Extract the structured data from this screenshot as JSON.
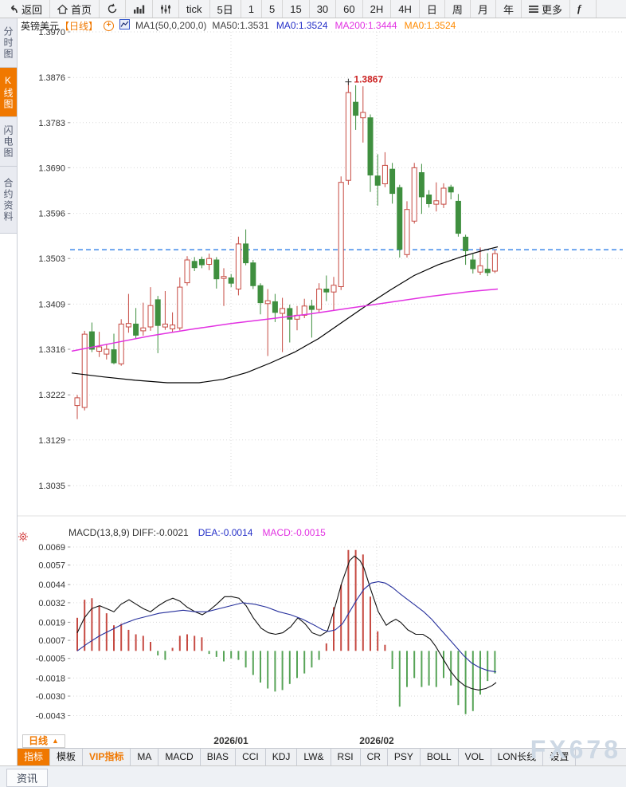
{
  "toolbar": {
    "back_label": "返回",
    "home_label": "首页",
    "periods": [
      "tick",
      "5日",
      "1",
      "5",
      "15",
      "30",
      "60",
      "2H",
      "4H",
      "日",
      "周",
      "月",
      "年"
    ],
    "more_label": "更多",
    "partial_item": "f"
  },
  "sidebar": {
    "tabs": [
      {
        "label": "分时图",
        "active": false
      },
      {
        "label": "K线图",
        "active": true
      },
      {
        "label": "闪电图",
        "active": false
      },
      {
        "label": "合约资料",
        "active": false
      }
    ]
  },
  "chart_header": {
    "symbol": "英镑美元",
    "period_tag": "【日线】",
    "ma_settings": "MA1(50,0,200,0)",
    "ma_values": [
      {
        "text": "MA50:1.3531",
        "color": "#444444"
      },
      {
        "text": "MA0:1.3524",
        "color": "#2530c8"
      },
      {
        "text": "MA200:1.3444",
        "color": "#e232e2"
      },
      {
        "text": "MA0:1.3524",
        "color": "#ff8a00"
      }
    ]
  },
  "macd_header": {
    "main": "MACD(13,8,9) DIFF:-0.0021",
    "dea": "DEA:-0.0014",
    "macd": "MACD:-0.0015",
    "dea_color": "#2530c8",
    "macd_color": "#e232e2"
  },
  "axis_row": {
    "period_selector": "日线",
    "dropdown_arrow": "▲"
  },
  "indicator_bar": {
    "tabs": [
      {
        "label": "指标",
        "style": "active"
      },
      {
        "label": "模板",
        "style": "normal"
      },
      {
        "label": "VIP指标",
        "style": "vip"
      },
      {
        "label": "MA",
        "style": "normal"
      },
      {
        "label": "MACD",
        "style": "normal"
      },
      {
        "label": "BIAS",
        "style": "normal"
      },
      {
        "label": "CCI",
        "style": "normal"
      },
      {
        "label": "KDJ",
        "style": "normal"
      },
      {
        "label": "LW&",
        "style": "normal"
      },
      {
        "label": "RSI",
        "style": "normal"
      },
      {
        "label": "CR",
        "style": "normal"
      },
      {
        "label": "PSY",
        "style": "normal"
      },
      {
        "label": "BOLL",
        "style": "normal"
      },
      {
        "label": "VOL",
        "style": "normal"
      },
      {
        "label": "LON长线",
        "style": "normal"
      },
      {
        "label": "设置",
        "style": "normal"
      }
    ],
    "watermark": "FX678"
  },
  "news_bar": {
    "label": "资讯"
  },
  "colors": {
    "accent_orange": "#f07800"
  },
  "chart_data": [
    {
      "type": "candlestick",
      "title": "英镑美元 日线",
      "y_axis_ticks": [
        1.397,
        1.3876,
        1.3783,
        1.369,
        1.3596,
        1.3503,
        1.3409,
        1.3316,
        1.3222,
        1.3129,
        1.3035
      ],
      "x_labels": [
        "2026/01",
        "2026/02"
      ],
      "month_x": [
        290,
        473
      ],
      "current_price_line": 1.3521,
      "annotation": {
        "text": "1.3867",
        "price": 1.3867,
        "at_candle": 38
      },
      "style": {
        "up_color": "#c64a42",
        "down_color": "#3f8f3f",
        "last_price_color": "#2e7fe8"
      },
      "candles_ohlc": [
        [
          1.32,
          1.3222,
          1.3172,
          1.3216
        ],
        [
          1.3196,
          1.3354,
          1.319,
          1.3347
        ],
        [
          1.3352,
          1.3371,
          1.331,
          1.3316
        ],
        [
          1.3312,
          1.3352,
          1.33,
          1.3321
        ],
        [
          1.3306,
          1.3327,
          1.3295,
          1.3316
        ],
        [
          1.3315,
          1.3348,
          1.3285,
          1.3288
        ],
        [
          1.3286,
          1.3378,
          1.3282,
          1.3368
        ],
        [
          1.3362,
          1.343,
          1.335,
          1.3369
        ],
        [
          1.3368,
          1.3401,
          1.3338,
          1.3345
        ],
        [
          1.3354,
          1.3412,
          1.3344,
          1.336
        ],
        [
          1.3362,
          1.3444,
          1.3354,
          1.3406
        ],
        [
          1.3418,
          1.3426,
          1.3308,
          1.3365
        ],
        [
          1.3362,
          1.3436,
          1.3356,
          1.3368
        ],
        [
          1.3358,
          1.3392,
          1.335,
          1.3366
        ],
        [
          1.336,
          1.3464,
          1.3355,
          1.3444
        ],
        [
          1.3453,
          1.3508,
          1.3447,
          1.35
        ],
        [
          1.3497,
          1.3506,
          1.3477,
          1.3484
        ],
        [
          1.3501,
          1.3507,
          1.3483,
          1.349
        ],
        [
          1.3491,
          1.3513,
          1.3479,
          1.3503
        ],
        [
          1.35,
          1.3506,
          1.3441,
          1.3461
        ],
        [
          1.3462,
          1.3483,
          1.3405,
          1.3466
        ],
        [
          1.3463,
          1.3471,
          1.3444,
          1.3452
        ],
        [
          1.344,
          1.3548,
          1.3427,
          1.3533
        ],
        [
          1.3533,
          1.3563,
          1.3489,
          1.3494
        ],
        [
          1.3494,
          1.35,
          1.344,
          1.3447
        ],
        [
          1.3447,
          1.3452,
          1.3388,
          1.3412
        ],
        [
          1.341,
          1.344,
          1.3302,
          1.3416
        ],
        [
          1.3414,
          1.343,
          1.3372,
          1.3392
        ],
        [
          1.339,
          1.3422,
          1.331,
          1.34
        ],
        [
          1.34,
          1.3408,
          1.333,
          1.3378
        ],
        [
          1.3378,
          1.3405,
          1.3355,
          1.3386
        ],
        [
          1.3386,
          1.342,
          1.338,
          1.3405
        ],
        [
          1.3405,
          1.3418,
          1.334,
          1.3398
        ],
        [
          1.3398,
          1.3452,
          1.3392,
          1.344
        ],
        [
          1.344,
          1.3468,
          1.3415,
          1.3434
        ],
        [
          1.3434,
          1.3465,
          1.3396,
          1.3448
        ],
        [
          1.3445,
          1.3672,
          1.3438,
          1.366
        ],
        [
          1.3664,
          1.3867,
          1.3655,
          1.3845
        ],
        [
          1.3825,
          1.386,
          1.3768,
          1.3798
        ],
        [
          1.3793,
          1.3858,
          1.3742,
          1.3804
        ],
        [
          1.3793,
          1.38,
          1.364,
          1.3675
        ],
        [
          1.3673,
          1.3718,
          1.3612,
          1.3654
        ],
        [
          1.3657,
          1.3722,
          1.365,
          1.3695
        ],
        [
          1.3687,
          1.37,
          1.3616,
          1.3637
        ],
        [
          1.3649,
          1.3655,
          1.3505,
          1.3522
        ],
        [
          1.3511,
          1.3621,
          1.3505,
          1.3604
        ],
        [
          1.358,
          1.37,
          1.3575,
          1.369
        ],
        [
          1.368,
          1.3698,
          1.3595,
          1.363
        ],
        [
          1.3634,
          1.3644,
          1.3608,
          1.3616
        ],
        [
          1.3615,
          1.366,
          1.36,
          1.3622
        ],
        [
          1.3615,
          1.3658,
          1.3607,
          1.3648
        ],
        [
          1.365,
          1.3655,
          1.3625,
          1.364
        ],
        [
          1.3621,
          1.3636,
          1.3548,
          1.3555
        ],
        [
          1.3547,
          1.3552,
          1.349,
          1.3519
        ],
        [
          1.35,
          1.3512,
          1.3472,
          1.3482
        ],
        [
          1.3475,
          1.3526,
          1.3469,
          1.3488
        ],
        [
          1.3481,
          1.3514,
          1.3467,
          1.3474
        ],
        [
          1.3477,
          1.3521,
          1.3473,
          1.3513
        ]
      ],
      "ma50": {
        "name": "MA50",
        "color": "#000000",
        "points": [
          [
            90,
            1.3267
          ],
          [
            130,
            1.3259
          ],
          [
            170,
            1.3252
          ],
          [
            210,
            1.3247
          ],
          [
            250,
            1.3247
          ],
          [
            280,
            1.3254
          ],
          [
            310,
            1.3268
          ],
          [
            340,
            1.3288
          ],
          [
            370,
            1.331
          ],
          [
            400,
            1.3338
          ],
          [
            430,
            1.3372
          ],
          [
            460,
            1.3406
          ],
          [
            490,
            1.3438
          ],
          [
            520,
            1.3468
          ],
          [
            550,
            1.349
          ],
          [
            580,
            1.3507
          ],
          [
            605,
            1.3519
          ],
          [
            625,
            1.3527
          ]
        ]
      },
      "ma200": {
        "name": "MA200",
        "color": "#e232e2",
        "points": [
          [
            90,
            1.3312
          ],
          [
            140,
            1.3328
          ],
          [
            190,
            1.3344
          ],
          [
            240,
            1.3357
          ],
          [
            290,
            1.3369
          ],
          [
            340,
            1.3379
          ],
          [
            390,
            1.3389
          ],
          [
            440,
            1.3401
          ],
          [
            490,
            1.3413
          ],
          [
            540,
            1.3425
          ],
          [
            590,
            1.3435
          ],
          [
            625,
            1.344
          ]
        ]
      }
    },
    {
      "type": "bar+line",
      "title": "MACD(13,8,9)",
      "y_axis_ticks": [
        0.0069,
        0.0057,
        0.0044,
        0.0032,
        0.0019,
        0.0007,
        -0.0005,
        -0.0018,
        -0.003,
        -0.0043
      ],
      "style": {
        "up_color": "#c64a42",
        "down_color": "#57a457"
      },
      "histogram": [
        0.0022,
        0.0034,
        0.0035,
        0.003,
        0.0025,
        0.0017,
        0.0018,
        0.0014,
        0.0011,
        0.001,
        0.0006,
        -0.0003,
        -0.0006,
        0.0002,
        0.001,
        0.0011,
        0.001,
        0.0009,
        -0.0002,
        -0.0004,
        -0.0007,
        -0.0005,
        -0.0006,
        -0.0011,
        -0.0016,
        -0.0021,
        -0.0025,
        -0.0027,
        -0.0026,
        -0.0022,
        -0.0018,
        -0.0015,
        -0.0011,
        -0.0006,
        0.0005,
        0.0029,
        0.0044,
        0.0067,
        0.0067,
        0.0064,
        0.0036,
        0.0013,
        0.0004,
        -0.0012,
        -0.0037,
        -0.0024,
        -0.0018,
        -0.0024,
        -0.0023,
        -0.0024,
        -0.0018,
        -0.0023,
        -0.0036,
        -0.0042,
        -0.004,
        -0.0029,
        -0.002,
        -0.0015
      ],
      "diff_line": {
        "name": "DIFF",
        "color": "#111111",
        "points": [
          [
            97,
            0.0012
          ],
          [
            106,
            0.0022
          ],
          [
            115,
            0.0028
          ],
          [
            125,
            0.003
          ],
          [
            134,
            0.0028
          ],
          [
            143,
            0.0026
          ],
          [
            152,
            0.0031
          ],
          [
            162,
            0.0034
          ],
          [
            171,
            0.0031
          ],
          [
            180,
            0.0028
          ],
          [
            189,
            0.0026
          ],
          [
            199,
            0.003
          ],
          [
            208,
            0.0033
          ],
          [
            217,
            0.0035
          ],
          [
            226,
            0.0033
          ],
          [
            235,
            0.0029
          ],
          [
            245,
            0.0026
          ],
          [
            254,
            0.0024
          ],
          [
            263,
            0.0027
          ],
          [
            272,
            0.0031
          ],
          [
            282,
            0.0036
          ],
          [
            291,
            0.0036
          ],
          [
            300,
            0.0035
          ],
          [
            309,
            0.003
          ],
          [
            318,
            0.0022
          ],
          [
            328,
            0.0015
          ],
          [
            337,
            0.0012
          ],
          [
            346,
            0.0011
          ],
          [
            355,
            0.0012
          ],
          [
            365,
            0.0016
          ],
          [
            374,
            0.0022
          ],
          [
            383,
            0.0018
          ],
          [
            392,
            0.0012
          ],
          [
            402,
            0.001
          ],
          [
            411,
            0.0013
          ],
          [
            420,
            0.0028
          ],
          [
            429,
            0.0045
          ],
          [
            439,
            0.006
          ],
          [
            445,
            0.0063
          ],
          [
            452,
            0.006
          ],
          [
            457,
            0.0055
          ],
          [
            466,
            0.004
          ],
          [
            475,
            0.0026
          ],
          [
            485,
            0.0017
          ],
          [
            490,
            0.0019
          ],
          [
            497,
            0.0021
          ],
          [
            503,
            0.0019
          ],
          [
            512,
            0.0014
          ],
          [
            522,
            0.0011
          ],
          [
            531,
            0.0011
          ],
          [
            540,
            0.0008
          ],
          [
            547,
            0.0003
          ],
          [
            556,
            -0.0005
          ],
          [
            565,
            -0.0013
          ],
          [
            574,
            -0.0019
          ],
          [
            583,
            -0.0023
          ],
          [
            592,
            -0.0025
          ],
          [
            601,
            -0.0026
          ],
          [
            610,
            -0.0025
          ],
          [
            618,
            -0.0023
          ],
          [
            623,
            -0.0021
          ]
        ]
      },
      "dea_line": {
        "name": "DEA",
        "color": "#26309c",
        "points": [
          [
            97,
            0.0
          ],
          [
            110,
            0.0005
          ],
          [
            125,
            0.001
          ],
          [
            140,
            0.0014
          ],
          [
            155,
            0.0018
          ],
          [
            170,
            0.0021
          ],
          [
            185,
            0.0023
          ],
          [
            200,
            0.0025
          ],
          [
            215,
            0.0026
          ],
          [
            230,
            0.0027
          ],
          [
            245,
            0.0026
          ],
          [
            260,
            0.0026
          ],
          [
            275,
            0.0028
          ],
          [
            290,
            0.003
          ],
          [
            305,
            0.0032
          ],
          [
            320,
            0.0031
          ],
          [
            335,
            0.0029
          ],
          [
            350,
            0.0026
          ],
          [
            365,
            0.0024
          ],
          [
            380,
            0.0021
          ],
          [
            395,
            0.0017
          ],
          [
            405,
            0.0014
          ],
          [
            413,
            0.0013
          ],
          [
            421,
            0.0014
          ],
          [
            430,
            0.0018
          ],
          [
            439,
            0.0026
          ],
          [
            448,
            0.0034
          ],
          [
            457,
            0.0041
          ],
          [
            466,
            0.0045
          ],
          [
            475,
            0.0046
          ],
          [
            484,
            0.0045
          ],
          [
            493,
            0.0042
          ],
          [
            502,
            0.0038
          ],
          [
            512,
            0.0034
          ],
          [
            522,
            0.003
          ],
          [
            532,
            0.0026
          ],
          [
            542,
            0.0021
          ],
          [
            552,
            0.0015
          ],
          [
            562,
            0.0009
          ],
          [
            572,
            0.0003
          ],
          [
            582,
            -0.0003
          ],
          [
            592,
            -0.0008
          ],
          [
            602,
            -0.0011
          ],
          [
            612,
            -0.0013
          ],
          [
            623,
            -0.0014
          ]
        ]
      }
    }
  ]
}
